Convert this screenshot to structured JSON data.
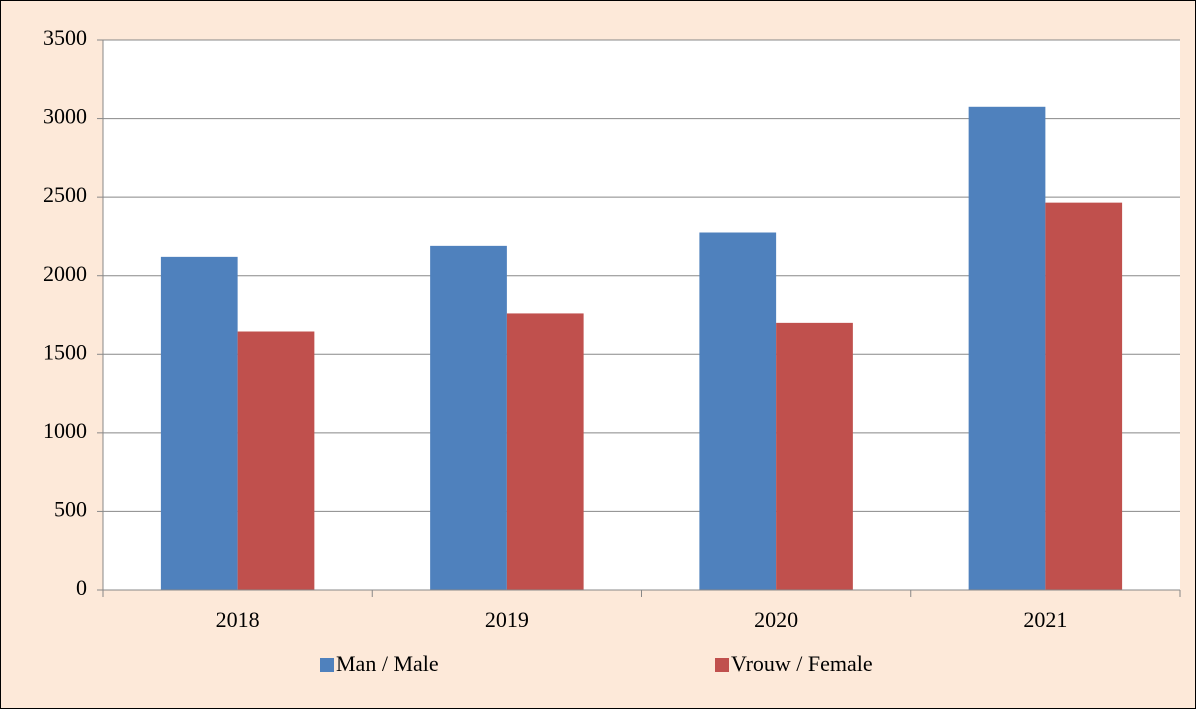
{
  "chart_data": {
    "type": "bar",
    "categories": [
      "2018",
      "2019",
      "2020",
      "2021"
    ],
    "series": [
      {
        "name": "Man / Male",
        "color": "#4f81bd",
        "values": [
          2120,
          2190,
          2275,
          3075
        ]
      },
      {
        "name": "Vrouw / Female",
        "color": "#c0504d",
        "values": [
          1645,
          1760,
          1700,
          2465
        ]
      }
    ],
    "ylim": [
      0,
      3500
    ],
    "yticks": [
      0,
      500,
      1000,
      1500,
      2000,
      2500,
      3000,
      3500
    ],
    "grid": true,
    "legend": "bottom"
  }
}
